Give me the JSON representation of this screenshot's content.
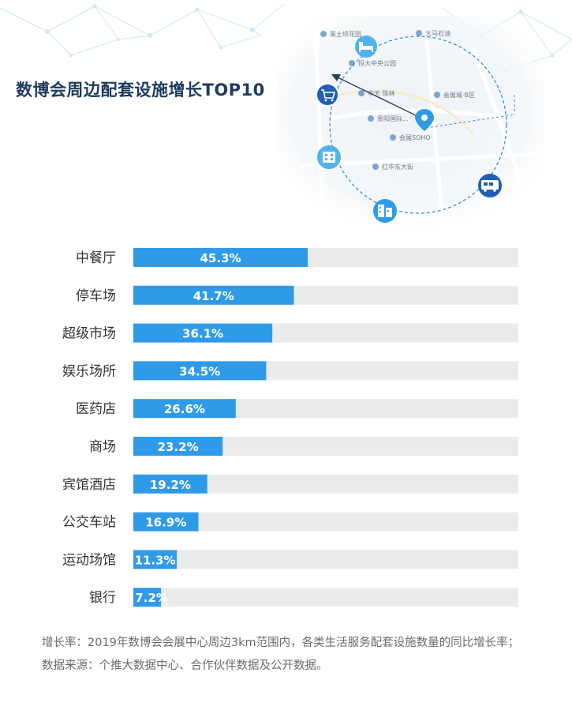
{
  "header": {
    "title": "数博会周边配套设施增长TOP10"
  },
  "map": {
    "place_labels": [
      "黑土坝花园",
      "大马石油",
      "恒大中央公园",
      "贵阳国际...",
      "中天·珠林",
      "会展城·B区",
      "会展SOHO",
      "红华东大街"
    ],
    "icons": [
      "shopping-cart-icon",
      "bed-icon",
      "building-icon",
      "apartments-icon",
      "bus-icon",
      "location-pin-icon"
    ],
    "accent_color": "#3b8fd9"
  },
  "chart_data": {
    "type": "bar",
    "orientation": "horizontal",
    "categories": [
      "中餐厅",
      "停车场",
      "超级市场",
      "娱乐场所",
      "医药店",
      "商场",
      "宾馆酒店",
      "公交车站",
      "运动场馆",
      "银行"
    ],
    "values": [
      45.3,
      41.7,
      36.1,
      34.5,
      26.6,
      23.2,
      19.2,
      16.9,
      11.3,
      7.2
    ],
    "value_labels": [
      "45.3%",
      "41.7%",
      "36.1%",
      "34.5%",
      "26.6%",
      "23.2%",
      "19.2%",
      "16.9%",
      "11.3%",
      "7.2%"
    ],
    "xlim": [
      0,
      100
    ],
    "bar_color": "#2f9be8",
    "track_color": "#ebebeb",
    "grid": false
  },
  "notes": {
    "definition": "增长率：2019年数博会会展中心周边3km范围内，各类生活服务配套设施数量的同比增长率；",
    "source": "数据来源：个推大数据中心、合作伙伴数据及公开数据。"
  }
}
